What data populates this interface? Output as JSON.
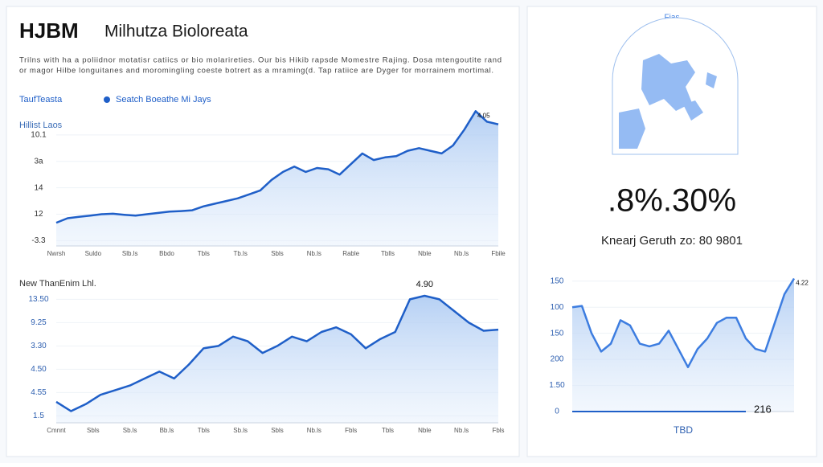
{
  "header": {
    "logo": "HJBM",
    "title": "Milhutza Bioloreata",
    "description": [
      "Trilns with ha a poliidnor motatisr catiics or bio molarireties. Our bis Hikib rapsde Momestre Rajing. Dosa mtengoutite rand",
      "or magor Hilbe longuitanes and moromingling coeste botrert as a mraming(d. Tap ratiice are Dyger for morrainem mortimal."
    ]
  },
  "kpi": {
    "value": ".8%.30%",
    "caption": "Knearj Geruth zo: 80 9801"
  },
  "map": {
    "label": "Fias"
  },
  "chart_data": [
    {
      "type": "line",
      "legend_title": "TaufTeasta",
      "y_label": "Hillist Laos",
      "annotation": "4.05",
      "series": [
        {
          "name": "Seatch Boeathe Mi Jays",
          "color": "#1f5fc8",
          "values": [
            0.68,
            0.85,
            0.9,
            0.95,
            1.0,
            1.02,
            0.98,
            0.95,
            1.0,
            1.05,
            1.1,
            1.12,
            1.15,
            1.3,
            1.4,
            1.5,
            1.6,
            1.75,
            1.9,
            2.3,
            2.6,
            2.8,
            2.6,
            2.75,
            2.7,
            2.5,
            2.9,
            3.3,
            3.05,
            3.15,
            3.2,
            3.4,
            3.5,
            3.4,
            3.3,
            3.6,
            4.2,
            4.9,
            4.5,
            4.4
          ]
        }
      ],
      "ylim": [
        -0.2,
        5
      ],
      "yticks": [
        {
          "value": 4,
          "label": "10.1"
        },
        {
          "value": 3,
          "label": "3a"
        },
        {
          "value": 2,
          "label": "14"
        },
        {
          "value": 1,
          "label": "12"
        },
        {
          "value": 0,
          "label": "-3.3"
        }
      ],
      "xtick_labels": [
        "Nwrsh",
        "Suldo",
        "Slb.ls",
        "Bbdo",
        "Tbls",
        "Tb.ls",
        "Sbls",
        "Nb.ls",
        "Rable",
        "Tblls",
        "Nble",
        "Nb.ls",
        "Fbile"
      ]
    },
    {
      "type": "line",
      "title": "New ThanEnim Lhl.",
      "annotation": "4.90",
      "series": [
        {
          "name": null,
          "color": "#1f5fc8",
          "values": [
            0.6,
            0.2,
            0.5,
            0.9,
            1.1,
            1.3,
            1.6,
            1.9,
            1.6,
            2.2,
            2.9,
            3.0,
            3.4,
            3.2,
            2.7,
            3.0,
            3.4,
            3.2,
            3.6,
            3.8,
            3.5,
            2.9,
            3.3,
            3.6,
            5.0,
            5.15,
            5.0,
            4.5,
            4.0,
            3.65,
            3.7
          ]
        }
      ],
      "ylim": [
        -0.3,
        5.6
      ],
      "yticks": [
        {
          "value": 5,
          "label": "13.50"
        },
        {
          "value": 4,
          "label": "9.25"
        },
        {
          "value": 3,
          "label": "3.30"
        },
        {
          "value": 2,
          "label": "4.50"
        },
        {
          "value": 1,
          "label": "4.55"
        },
        {
          "value": 0,
          "label": "1.5"
        }
      ],
      "xtick_labels": [
        "Cmnnt",
        "Sbls",
        "Sb.ls",
        "Bb.ls",
        "Tbls",
        "Sb.ls",
        "Sbls",
        "Nb.ls",
        "Fbls",
        "Tbls",
        "Nble",
        "Nb.ls",
        "Fbls"
      ]
    },
    {
      "type": "line",
      "annotation": "4.22",
      "callout": "216",
      "x_label": "TBD",
      "series": [
        {
          "name": null,
          "color": "#3d7de0",
          "values": [
            4.0,
            4.05,
            3.0,
            2.3,
            2.6,
            3.5,
            3.3,
            2.6,
            2.5,
            2.6,
            3.1,
            2.4,
            1.7,
            2.4,
            2.8,
            3.4,
            3.6,
            3.6,
            2.8,
            2.4,
            2.3,
            3.4,
            4.5,
            5.1
          ]
        }
      ],
      "ylim": [
        0,
        5.3
      ],
      "yticks": [
        {
          "value": 5,
          "label": "150"
        },
        {
          "value": 4,
          "label": "100"
        },
        {
          "value": 3,
          "label": "150"
        },
        {
          "value": 2,
          "label": "200"
        },
        {
          "value": 1,
          "label": "1.50"
        },
        {
          "value": 0,
          "label": "0"
        }
      ],
      "xtick_labels": []
    }
  ]
}
